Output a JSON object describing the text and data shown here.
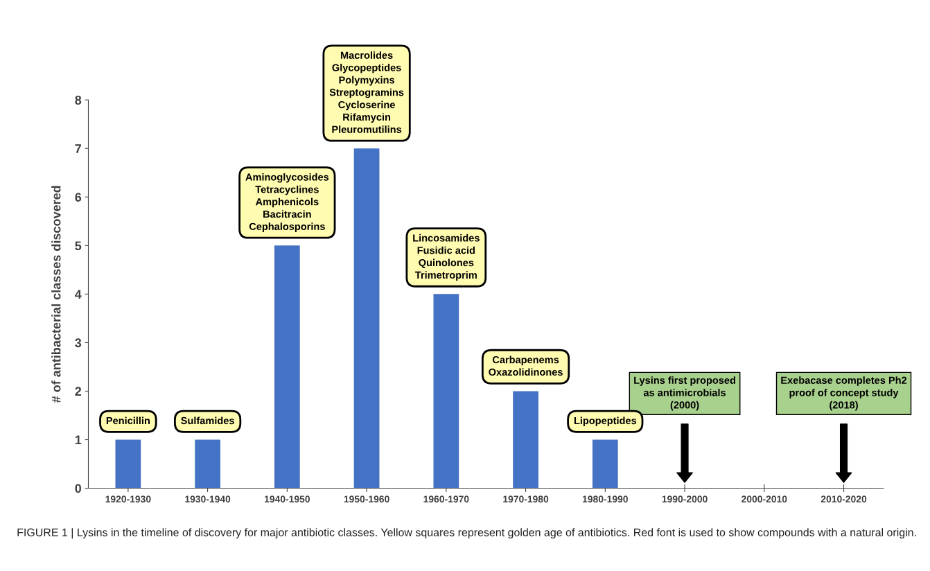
{
  "chart_data": {
    "type": "bar",
    "ylabel": "# of antibacterial classes discovered",
    "categories": [
      "1920-1930",
      "1930-1940",
      "1940-1950",
      "1950-1960",
      "1960-1970",
      "1970-1980",
      "1980-1990",
      "1990-2000",
      "2000-2010",
      "2010-2020"
    ],
    "values": [
      1,
      1,
      5,
      7,
      4,
      2,
      1,
      0,
      0,
      0
    ],
    "color": "#4472c4",
    "ylim": [
      0,
      8
    ],
    "yticks": [
      0,
      1,
      2,
      3,
      4,
      5,
      6,
      7,
      8
    ],
    "grid": false,
    "legend": false,
    "annotations": [
      {
        "text": "Penicillin",
        "x": "1920-1930",
        "y": 1
      },
      {
        "text": "Sulfamides",
        "x": "1930-1940",
        "y": 1
      },
      {
        "text": "Aminoglycosides\nTetracyclines\nAmphenicols\nBacitracin\nCephalosporins",
        "x": "1940-1950",
        "y": 5
      },
      {
        "text": "Macrolides\nGlycopeptides\nPolymyxins\nStreptogramins\nCycloserine\nRifamycin\nPleuromutilins",
        "x": "1950-1960",
        "y": 7
      },
      {
        "text": "Lincosamides\nFusidic acid\nQuinolones\nTrimetroprim",
        "x": "1960-1970",
        "y": 4
      },
      {
        "text": "Carbapenems\nOxazolidinones",
        "x": "1970-1980",
        "y": 2
      },
      {
        "text": "Lipopeptides",
        "x": "1980-1990",
        "y": 1
      },
      "Lysins first proposed\nas antimicrobials\n(2000)",
      "Exebacase completes Ph2\nproof of concept study\n(2018)",
      "FIGURE 1 | Lysins in the timeline of discovery for major antibiotic classes. Yellow squares represent golden age of antibiotics. Red font is used to show compounds with a natural origin."
    ]
  }
}
